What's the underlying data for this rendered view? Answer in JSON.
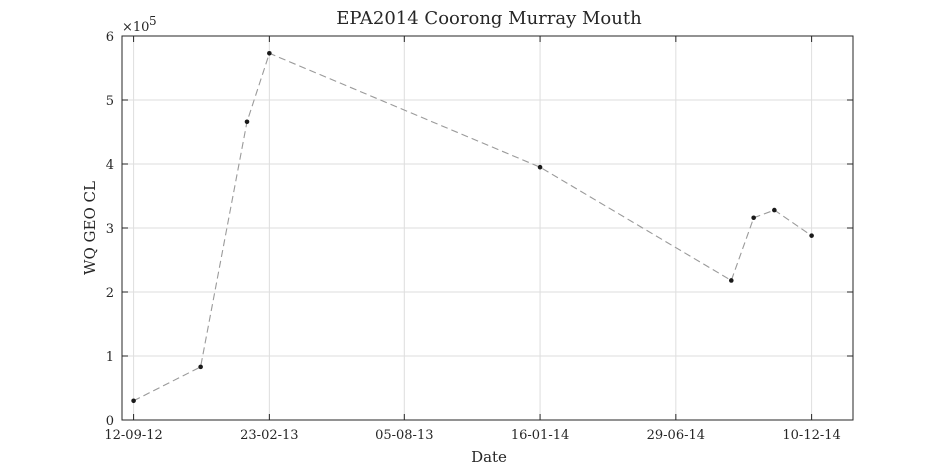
{
  "chart_data": {
    "type": "line",
    "title": "EPA2014 Coorong Murray Mouth",
    "xlabel": "Date",
    "ylabel": "WQ GEO CL",
    "y_multiplier": "×10",
    "y_exponent": "5",
    "ylim": [
      0,
      600000
    ],
    "yticks": [
      0,
      100000,
      200000,
      300000,
      400000,
      500000,
      600000
    ],
    "ytick_labels": [
      "0",
      "1",
      "2",
      "3",
      "4",
      "5",
      "6"
    ],
    "xlim": [
      "2012-08-29",
      "2015-01-29"
    ],
    "xticks": [
      "2012-09-12",
      "2013-02-23",
      "2013-08-05",
      "2014-01-16",
      "2014-06-29",
      "2014-12-10"
    ],
    "xtick_labels": [
      "12-09-12",
      "23-02-13",
      "05-08-13",
      "16-01-14",
      "29-06-14",
      "10-12-14"
    ],
    "grid": true,
    "line_style": "dashed",
    "line_color": "#9a9a9a",
    "marker_color": "#1a1a1a",
    "series": [
      {
        "x": [
          "2012-09-12",
          "2012-12-02",
          "2013-01-27",
          "2013-02-23",
          "2014-01-16",
          "2014-09-04",
          "2014-10-01",
          "2014-10-26",
          "2014-12-10"
        ],
        "y": [
          30000,
          83000,
          466000,
          573000,
          395000,
          218000,
          316000,
          328000,
          288000
        ]
      }
    ]
  }
}
